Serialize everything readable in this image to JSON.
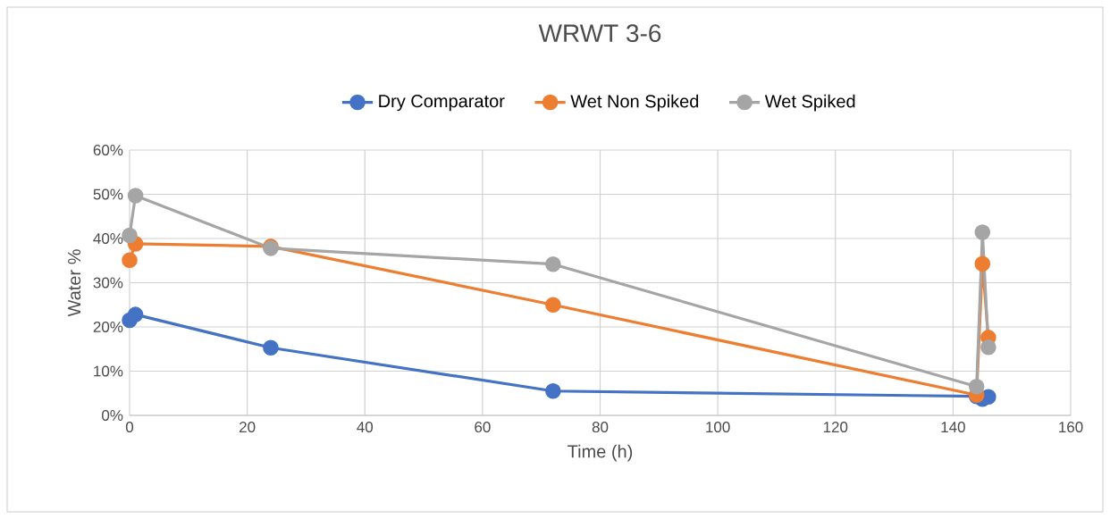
{
  "chart_data": {
    "type": "line",
    "title": "WRWT 3-6",
    "xlabel": "Time (h)",
    "ylabel": "Water %",
    "x": [
      0,
      1,
      24,
      72,
      144,
      145,
      146
    ],
    "series": [
      {
        "name": "Dry Comparator",
        "color": "#4472c4",
        "values": [
          21.5,
          22.8,
          15.3,
          5.5,
          4.3,
          3.7,
          4.2
        ]
      },
      {
        "name": "Wet Non Spiked",
        "color": "#ed7d31",
        "values": [
          35.1,
          38.8,
          38.2,
          25.0,
          4.6,
          34.3,
          17.6
        ]
      },
      {
        "name": "Wet Spiked",
        "color": "#a5a5a5",
        "values": [
          40.7,
          49.7,
          37.8,
          34.2,
          6.5,
          41.4,
          15.4
        ]
      }
    ],
    "xlim": [
      0,
      160
    ],
    "xticks": [
      0,
      20,
      40,
      60,
      80,
      100,
      120,
      140,
      160
    ],
    "ylim": [
      0,
      60
    ],
    "yticks": [
      {
        "value": 0,
        "label": "0%"
      },
      {
        "value": 10,
        "label": "10%"
      },
      {
        "value": 20,
        "label": "20%"
      },
      {
        "value": 30,
        "label": "30%"
      },
      {
        "value": 40,
        "label": "40%"
      },
      {
        "value": 50,
        "label": "50%"
      },
      {
        "value": 60,
        "label": "60%"
      }
    ],
    "grid": true,
    "legend": "top",
    "marker": "circle",
    "line_style": "solid"
  }
}
